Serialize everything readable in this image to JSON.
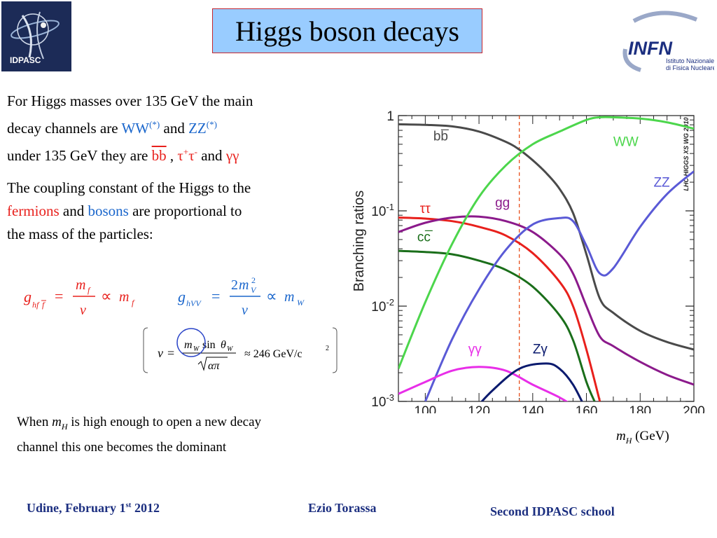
{
  "slide": {
    "title": "Higgs boson decays",
    "logo_left_text": "IDPASC",
    "logo_right": {
      "text": "INFN",
      "sub1": "Istituto Nazionale",
      "sub2": "di Fisica Nucleare"
    }
  },
  "paragraph1": {
    "line1": "For Higgs masses over 135 GeV the main",
    "line2_a": "decay channels are ",
    "ww": "WW",
    "ww_sup": "(*)",
    "and1": " and  ",
    "zz": "ZZ",
    "zz_sup": "(*)",
    "line3_a": "under 135 GeV  they are ",
    "bb": "bb",
    "comma": " , ",
    "tau": "τ",
    "tau_sup1": "+",
    "tau_sup2": "-",
    "and2": " and ",
    "gg": "γγ"
  },
  "paragraph2": {
    "line1": "The coupling constant of the Higgs to the",
    "fermions": "fermions",
    "and": " and ",
    "bosons": "bosons",
    "line2_end": " are proportional to",
    "line3": "the mass of the particles:"
  },
  "formulas": {
    "left_color": "#e8201c",
    "right_color": "#1a66cc",
    "vev_value": "≈ 246 GeV/c",
    "vev_sup": "2"
  },
  "note": {
    "line1_a": "When ",
    "mh": "m",
    "mh_sub": "H",
    "line1_b": " is high enough to open a new decay",
    "line2": "channel this one becomes the dominant"
  },
  "footer": {
    "left_a": "Udine, February 1",
    "left_sup": "st",
    "left_b": "  2012",
    "middle": "Ezio Torassa",
    "right": "Second  IDPASC school"
  },
  "chart_data": {
    "type": "line",
    "ylabel": "Branching ratios",
    "xlabel_m": "m",
    "xlabel_sub": "H",
    "xlabel_unit": " (GeV)",
    "watermark": "LHC HIGGS XS WG 2010",
    "xlim": [
      90,
      200
    ],
    "ylim": [
      0.001,
      1
    ],
    "yscale": "log",
    "x_ticks": [
      100,
      120,
      140,
      160,
      180,
      200
    ],
    "y_ticks": [
      {
        "value": 1,
        "label": "1"
      },
      {
        "value": 0.1,
        "label": "10-1"
      },
      {
        "value": 0.01,
        "label": "10-2"
      },
      {
        "value": 0.001,
        "label": "10-3"
      }
    ],
    "marker_line": {
      "x": 135,
      "color": "#e8501c",
      "style": "dashed"
    },
    "series": [
      {
        "name": "bb",
        "color": "#4a4a4a",
        "x": [
          90,
          100,
          110,
          120,
          130,
          135,
          140,
          145,
          150,
          155,
          160,
          165,
          170,
          180,
          190,
          200
        ],
        "y": [
          0.81,
          0.8,
          0.77,
          0.68,
          0.53,
          0.44,
          0.34,
          0.25,
          0.17,
          0.095,
          0.035,
          0.012,
          0.0085,
          0.0055,
          0.0042,
          0.0035
        ]
      },
      {
        "name": "ττ",
        "color": "#e8201c",
        "x": [
          90,
          100,
          110,
          120,
          130,
          140,
          150,
          155,
          160,
          165
        ],
        "y": [
          0.085,
          0.083,
          0.078,
          0.068,
          0.055,
          0.036,
          0.018,
          0.01,
          0.0035,
          0.001
        ]
      },
      {
        "name": "cc",
        "color": "#1a6e1a",
        "x": [
          90,
          100,
          110,
          120,
          130,
          140,
          150,
          155,
          160,
          163
        ],
        "y": [
          0.038,
          0.037,
          0.035,
          0.03,
          0.024,
          0.016,
          0.008,
          0.0044,
          0.0016,
          0.001
        ]
      },
      {
        "name": "gg",
        "color": "#8b1a8b",
        "x": [
          90,
          100,
          110,
          120,
          130,
          140,
          150,
          155,
          160,
          165,
          170,
          180,
          190,
          200
        ],
        "y": [
          0.06,
          0.075,
          0.085,
          0.087,
          0.078,
          0.06,
          0.035,
          0.022,
          0.01,
          0.0048,
          0.0038,
          0.0026,
          0.0019,
          0.0015
        ]
      },
      {
        "name": "WW",
        "color": "#4cd64c",
        "x": [
          90,
          100,
          110,
          120,
          130,
          140,
          150,
          160,
          165,
          170,
          180,
          190,
          200
        ],
        "y": [
          0.0022,
          0.011,
          0.045,
          0.14,
          0.3,
          0.5,
          0.68,
          0.9,
          0.96,
          0.96,
          0.93,
          0.85,
          0.73
        ]
      },
      {
        "name": "ZZ",
        "color": "#5a5ad6",
        "x": [
          100,
          110,
          120,
          130,
          140,
          150,
          155,
          160,
          165,
          170,
          180,
          190,
          200
        ],
        "y": [
          0.001,
          0.0045,
          0.015,
          0.039,
          0.072,
          0.084,
          0.078,
          0.043,
          0.022,
          0.025,
          0.068,
          0.15,
          0.26
        ]
      },
      {
        "name": "γγ",
        "color": "#e82ee8",
        "x": [
          90,
          100,
          110,
          120,
          130,
          140,
          150,
          155
        ],
        "y": [
          0.0012,
          0.0016,
          0.0021,
          0.0023,
          0.0021,
          0.0015,
          0.0011,
          0.0009
        ]
      },
      {
        "name": "Zγ",
        "color": "#0a1a6e",
        "x": [
          118,
          125,
          135,
          145,
          150,
          155,
          160
        ],
        "y": [
          0.0008,
          0.0013,
          0.0022,
          0.0025,
          0.0022,
          0.0015,
          0.0008
        ]
      }
    ],
    "labels": [
      {
        "text": "bb",
        "x": 103,
        "y": 0.55,
        "color": "#4a4a4a"
      },
      {
        "text": "WW",
        "x": 170,
        "y": 0.48,
        "color": "#4cd64c"
      },
      {
        "text": "ZZ",
        "x": 185,
        "y": 0.18,
        "color": "#5a5ad6"
      },
      {
        "text": "gg",
        "x": 126,
        "y": 0.11,
        "color": "#8b1a8b"
      },
      {
        "text": "ττ",
        "x": 98,
        "y": 0.095,
        "color": "#e8201c"
      },
      {
        "text": "cc",
        "x": 97,
        "y": 0.048,
        "color": "#1a6e1a"
      },
      {
        "text": "γγ",
        "x": 116,
        "y": 0.0032,
        "color": "#e82ee8"
      },
      {
        "text": "Zγ",
        "x": 140,
        "y": 0.0032,
        "color": "#0a1a6e"
      }
    ]
  }
}
